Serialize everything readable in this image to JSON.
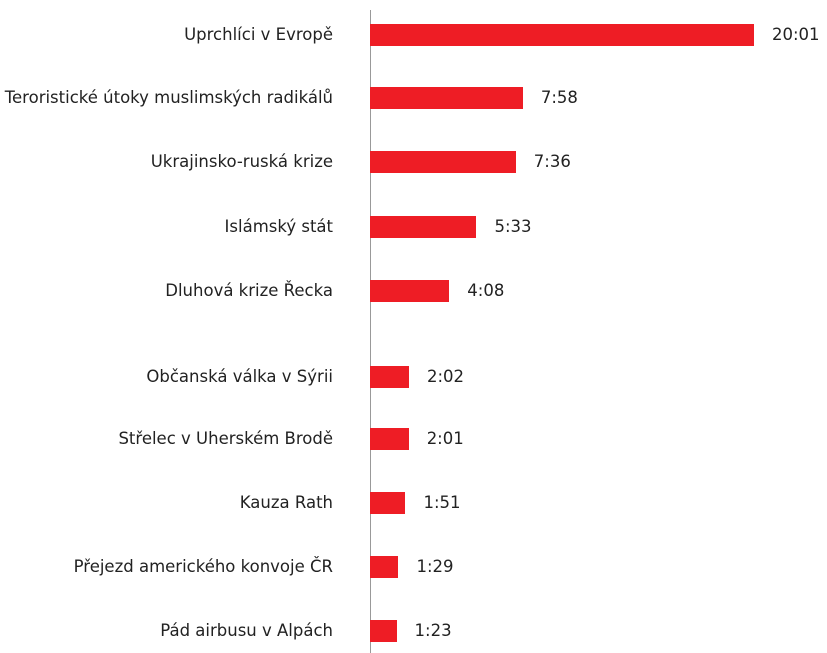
{
  "chart_data": {
    "type": "bar",
    "orientation": "horizontal",
    "color": "#ee1d25",
    "categories": [
      "Uprchlíci v Evropě",
      "Teroristické útoky muslimských radikálů",
      "Ukrajinsko-ruská krize",
      "Islámský stát",
      "Dluhová krize Řecka",
      "Občanská válka v Sýrii",
      "Střelec v Uherském Brodě",
      "Kauza Rath",
      "Přejezd amerického konvoje ČR",
      "Pád airbusu v Alpách"
    ],
    "values": [
      1201,
      478,
      456,
      333,
      248,
      122,
      121,
      111,
      89,
      83
    ],
    "value_labels": [
      "20:01",
      "7:58",
      "7:36",
      "5:33",
      "4:08",
      "2:02",
      "2:01",
      "1:51",
      "1:29",
      "1:23"
    ]
  }
}
